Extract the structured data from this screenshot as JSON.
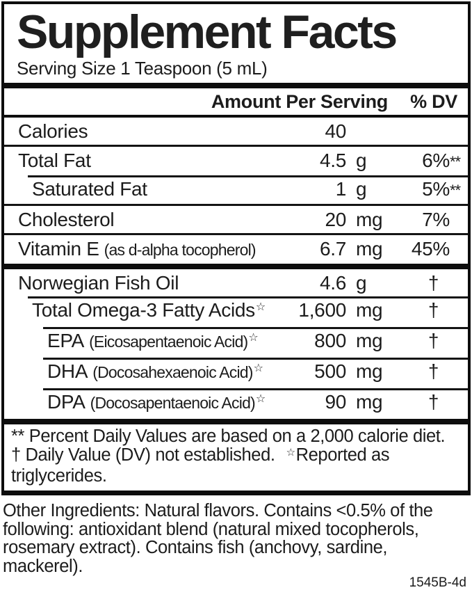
{
  "label": {
    "title": "Supplement Facts",
    "serving_size": "Serving Size 1 Teaspoon (5 mL)",
    "header": {
      "amount": "Amount Per Serving",
      "dv": "% DV"
    },
    "rows": [
      {
        "name": "Calories",
        "detail": "",
        "mark": "",
        "amount": "40",
        "unit": "",
        "dv": "",
        "suffix": "",
        "indent": 0,
        "sep": "none"
      },
      {
        "name": "Total Fat",
        "detail": "",
        "mark": "",
        "amount": "4.5",
        "unit": "g",
        "dv": "6%",
        "suffix": "**",
        "indent": 0,
        "sep": "full"
      },
      {
        "name": "Saturated Fat",
        "detail": "",
        "mark": "",
        "amount": "1",
        "unit": "g",
        "dv": "5%",
        "suffix": "**",
        "indent": 1,
        "sep": "indent1"
      },
      {
        "name": "Cholesterol",
        "detail": "",
        "mark": "",
        "amount": "20",
        "unit": "mg",
        "dv": "7%",
        "suffix": "",
        "indent": 0,
        "sep": "full"
      },
      {
        "name": "Vitamin E",
        "detail": "(as d-alpha tocopherol)",
        "mark": "",
        "amount": "6.7",
        "unit": "mg",
        "dv": "45%",
        "suffix": "",
        "indent": 0,
        "sep": "full"
      },
      {
        "name": "Norwegian Fish Oil",
        "detail": "",
        "mark": "",
        "amount": "4.6",
        "unit": "g",
        "dv": "†",
        "suffix": "",
        "indent": 0,
        "sep": "bar"
      },
      {
        "name": "Total Omega-3 Fatty Acids",
        "detail": "",
        "mark": "☆",
        "amount": "1,600",
        "unit": "mg",
        "dv": "†",
        "suffix": "",
        "indent": 1,
        "sep": "indent1"
      },
      {
        "name": "EPA",
        "detail": "(Eicosapentaenoic Acid)",
        "mark": "☆",
        "amount": "800",
        "unit": "mg",
        "dv": "†",
        "suffix": "",
        "indent": 2,
        "sep": "indent2"
      },
      {
        "name": "DHA",
        "detail": "(Docosahexaenoic Acid)",
        "mark": "☆",
        "amount": "500",
        "unit": "mg",
        "dv": "†",
        "suffix": "",
        "indent": 2,
        "sep": "indent2"
      },
      {
        "name": "DPA",
        "detail": "(Docosapentaenoic Acid)",
        "mark": "☆",
        "amount": "90",
        "unit": "mg",
        "dv": "†",
        "suffix": "",
        "indent": 2,
        "sep": "indent2"
      }
    ],
    "footnotes": {
      "line1": "** Percent Daily Values are based on a 2,000 calorie diet.",
      "line2_pre": "† Daily Value (DV) not established.",
      "line2_star": "☆",
      "line2_post": "Reported as triglycerides."
    },
    "other_ingredients_lines": [
      "Other Ingredients: Natural flavors. Contains <0.5% of the",
      "following: antioxidant blend (natural mixed tocopherols,",
      "rosemary extract). Contains fish (anchovy, sardine, mackerel)."
    ],
    "product_code": "1545B-4d",
    "colors": {
      "ink": "#1c1c1c",
      "border": "#0d0d0d",
      "background": "#ffffff"
    }
  }
}
